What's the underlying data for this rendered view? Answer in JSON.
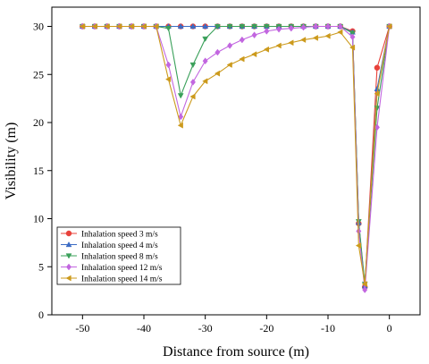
{
  "chart_data": {
    "type": "line",
    "xlabel": "Distance from source (m)",
    "ylabel": "Visibility (m)",
    "xlim": [
      -55,
      5
    ],
    "ylim": [
      0,
      32
    ],
    "x_ticks": [
      -50,
      -40,
      -30,
      -20,
      -10,
      0
    ],
    "x_tick_labels": [
      "-50",
      "-40",
      "-30",
      "-20",
      "-10",
      "0"
    ],
    "y_ticks": [
      0,
      5,
      10,
      15,
      20,
      25,
      30
    ],
    "y_tick_labels": [
      "0",
      "5",
      "10",
      "15",
      "20",
      "25",
      "30"
    ],
    "grid": false,
    "legend_position": "bottom-left",
    "series": [
      {
        "name": "Inhalation speed 3 m/s",
        "color": "#e8413a",
        "marker": "circle",
        "x": [
          -50,
          -48,
          -46,
          -44,
          -42,
          -40,
          -38,
          -36,
          -34,
          -32,
          -30,
          -28,
          -26,
          -24,
          -22,
          -20,
          -18,
          -16,
          -14,
          -12,
          -10,
          -8,
          -6,
          -5,
          -4,
          -2,
          0
        ],
        "y": [
          30,
          30,
          30,
          30,
          30,
          30,
          30,
          30,
          30,
          30,
          30,
          30,
          30,
          30,
          30,
          30,
          30,
          30,
          30,
          30,
          30,
          30,
          29.5,
          9.5,
          2.9,
          25.7,
          30
        ]
      },
      {
        "name": "Inhalation speed 4 m/s",
        "color": "#3b6bc4",
        "marker": "triangle-up",
        "x": [
          -50,
          -48,
          -46,
          -44,
          -42,
          -40,
          -38,
          -36,
          -34,
          -32,
          -30,
          -28,
          -26,
          -24,
          -22,
          -20,
          -18,
          -16,
          -14,
          -12,
          -10,
          -8,
          -6,
          -5,
          -4,
          -2,
          0
        ],
        "y": [
          30,
          30,
          30,
          30,
          30,
          30,
          30,
          30,
          30,
          30,
          30,
          30,
          30,
          30,
          30,
          30,
          30,
          30,
          30,
          30,
          30,
          30,
          29.4,
          9.6,
          3.0,
          23.5,
          30
        ]
      },
      {
        "name": "Inhalation speed 8 m/s",
        "color": "#3aa05a",
        "marker": "triangle-down",
        "x": [
          -50,
          -48,
          -46,
          -44,
          -42,
          -40,
          -38,
          -36,
          -34,
          -32,
          -30,
          -28,
          -26,
          -24,
          -22,
          -20,
          -18,
          -16,
          -14,
          -12,
          -10,
          -8,
          -6,
          -5,
          -4,
          -2,
          0
        ],
        "y": [
          30,
          30,
          30,
          30,
          30,
          30,
          30,
          29.8,
          22.8,
          26,
          28.7,
          30,
          30,
          30,
          30,
          30,
          30,
          30,
          30,
          30,
          30,
          30,
          29.3,
          9.7,
          3.2,
          21.5,
          30
        ]
      },
      {
        "name": "Inhalation speed 12 m/s",
        "color": "#c266e0",
        "marker": "diamond",
        "x": [
          -50,
          -48,
          -46,
          -44,
          -42,
          -40,
          -38,
          -36,
          -34,
          -32,
          -30,
          -28,
          -26,
          -24,
          -22,
          -20,
          -18,
          -16,
          -14,
          -12,
          -10,
          -8,
          -6,
          -5,
          -4,
          -2,
          0
        ],
        "y": [
          30,
          30,
          30,
          30,
          30,
          30,
          30,
          26,
          20.6,
          24.2,
          26.4,
          27.3,
          28,
          28.6,
          29.1,
          29.5,
          29.7,
          29.8,
          29.9,
          30,
          30,
          30,
          28.9,
          8.7,
          2.6,
          19.5,
          30
        ]
      },
      {
        "name": "Inhalation speed 14 m/s",
        "color": "#cc9a1c",
        "marker": "triangle-left",
        "x": [
          -50,
          -48,
          -46,
          -44,
          -42,
          -40,
          -38,
          -36,
          -34,
          -32,
          -30,
          -28,
          -26,
          -24,
          -22,
          -20,
          -18,
          -16,
          -14,
          -12,
          -10,
          -8,
          -6,
          -5,
          -4,
          -2,
          0
        ],
        "y": [
          30,
          30,
          30,
          30,
          30,
          30,
          30,
          24.5,
          19.7,
          22.7,
          24.3,
          25.1,
          26,
          26.6,
          27.1,
          27.6,
          28,
          28.3,
          28.6,
          28.8,
          29,
          29.4,
          27.8,
          7.2,
          3.2,
          23,
          30
        ]
      }
    ]
  }
}
